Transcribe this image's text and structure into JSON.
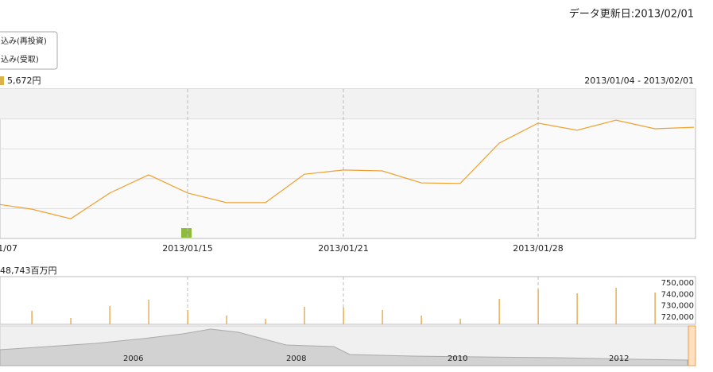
{
  "header": {
    "updated": "データ更新日:2013/02/01"
  },
  "legend": [
    "込み(再投資)",
    "込み(受取)"
  ],
  "chart_data": [
    {
      "type": "line",
      "latest_label": "5,672円",
      "range_label": "2013/01/04 - 2013/02/01",
      "categories": [
        "1/07",
        null,
        null,
        null,
        null,
        "2013/01/15",
        null,
        null,
        null,
        "2013/01/21",
        null,
        null,
        null,
        null,
        "2013/01/28",
        null,
        null,
        null,
        null
      ],
      "series": [
        {
          "color": "#f0a030",
          "values": [
            1.17,
            0.98,
            0.66,
            1.52,
            2.13,
            1.52,
            1.2,
            1.2,
            2.15,
            2.29,
            2.26,
            1.86,
            1.84,
            3.19,
            3.86,
            3.62,
            3.96,
            3.67,
            3.72
          ]
        }
      ],
      "ylim": [
        0,
        5
      ],
      "gridlines": [
        1,
        2,
        3,
        4
      ]
    },
    {
      "type": "bar",
      "latest_label": "48,743百万円",
      "color": "#e39a2a",
      "values": [
        null,
        725600,
        719300,
        729800,
        735400,
        726300,
        721400,
        718600,
        729100,
        728400,
        726300,
        721400,
        718600,
        736000,
        744400,
        740900,
        745800,
        741600,
        null
      ],
      "ylim": [
        713700,
        755600
      ],
      "yticks": [
        {
          "value": 720000,
          "label": "720,000"
        },
        {
          "value": 730000,
          "label": "730,000"
        },
        {
          "value": 740000,
          "label": "740,000"
        },
        {
          "value": 750000,
          "label": "750,000"
        }
      ]
    }
  ],
  "navigator": {
    "labels": [
      "2006",
      "2008",
      "2010",
      "2012"
    ]
  }
}
